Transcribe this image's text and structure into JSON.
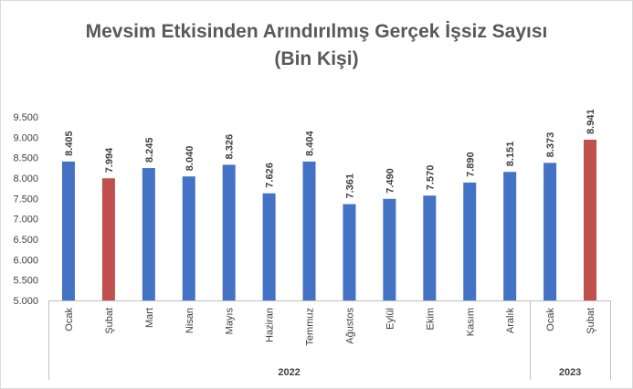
{
  "chart_data": {
    "type": "bar",
    "title_line1": "Mevsim Etkisinden Arındırılmış Gerçek İşsiz Sayısı",
    "title_line2": "(Bin Kişi)",
    "categories": [
      "Ocak",
      "Şubat",
      "Mart",
      "Nisan",
      "Mayıs",
      "Haziran",
      "Temmuz",
      "Ağustos",
      "Eylül",
      "Ekim",
      "Kasım",
      "Aralık",
      "Ocak",
      "Şubat"
    ],
    "values": [
      8.405,
      7.994,
      8.245,
      8.04,
      8.326,
      7.626,
      8.404,
      7.361,
      7.49,
      7.57,
      7.89,
      8.151,
      8.373,
      8.941
    ],
    "data_labels": [
      "8.405",
      "7.994",
      "8.245",
      "8.040",
      "8.326",
      "7.626",
      "8.404",
      "7.361",
      "7.490",
      "7.570",
      "7.890",
      "8.151",
      "8.373",
      "8.941"
    ],
    "highlighted": [
      1,
      13
    ],
    "groups": [
      {
        "label": "2022",
        "start": 0,
        "end": 11
      },
      {
        "label": "2023",
        "start": 12,
        "end": 13
      }
    ],
    "ylim": [
      5.0,
      9.5
    ],
    "yticks": [
      5.0,
      5.5,
      6.0,
      6.5,
      7.0,
      7.5,
      8.0,
      8.5,
      9.0,
      9.5
    ],
    "ytick_labels": [
      "5.000",
      "5.500",
      "6.000",
      "6.500",
      "7.000",
      "7.500",
      "8.000",
      "8.500",
      "9.000",
      "9.500"
    ],
    "grid": false,
    "legend": "none",
    "colors": {
      "bar": "#4472c4",
      "highlight": "#c0504d",
      "axis": "#bfbfbf",
      "text": "#404040",
      "title": "#595959"
    }
  }
}
